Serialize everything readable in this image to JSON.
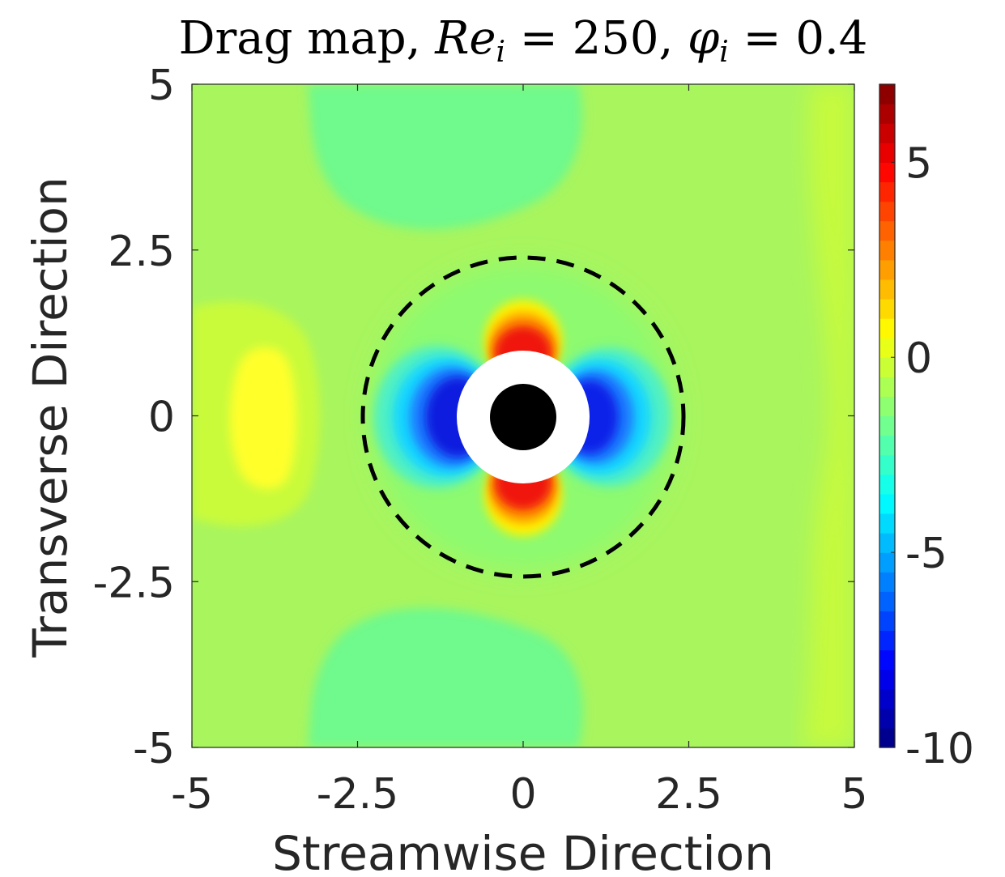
{
  "chart_data": {
    "type": "heatmap",
    "title": {
      "prefix": "Drag map, ",
      "re_symbol": "Re",
      "re_subscript": "i",
      "re_value": " = 250, ",
      "phi_symbol": "φ",
      "phi_subscript": "i",
      "phi_value": " = 0.4"
    },
    "xlabel": "Streamwise Direction",
    "ylabel": "Transverse Direction",
    "xlim": [
      -5,
      5
    ],
    "ylim": [
      -5,
      5
    ],
    "xticks": [
      -5,
      -2.5,
      0,
      2.5,
      5
    ],
    "yticks": [
      -5,
      -2.5,
      0,
      2.5,
      5
    ],
    "xtick_labels": [
      "-5",
      "-2.5",
      "0",
      "2.5",
      "5"
    ],
    "ytick_labels": [
      "-5",
      "-2.5",
      "0",
      "2.5",
      "5"
    ],
    "colorbar": {
      "range": [
        -10,
        7
      ],
      "ticks": [
        5,
        0,
        -5,
        -10
      ],
      "tick_labels": [
        "5",
        "0",
        "-5",
        "-10"
      ],
      "colormap": "jet",
      "levels": 34
    },
    "annotations": {
      "dashed_circle_radius": 2.4,
      "exclusion_zone_radius": 1.0,
      "particle_radius": 0.5
    },
    "regions": [
      {
        "name": "upstream-positive-lobe",
        "x": -4.0,
        "y": 0,
        "value": 1.5
      },
      {
        "name": "top-positive-lobe",
        "x": 0,
        "y": 1.2,
        "value": 7
      },
      {
        "name": "bottom-positive-lobe",
        "x": 0,
        "y": -1.2,
        "value": 7
      },
      {
        "name": "left-negative-lobe",
        "x": -1.2,
        "y": 0,
        "value": -10
      },
      {
        "name": "right-negative-lobe",
        "x": 1.2,
        "y": 0,
        "value": -9
      },
      {
        "name": "top-wake-region",
        "x": 0,
        "y": 4.0,
        "value": -1.2
      },
      {
        "name": "bottom-wake-region",
        "x": 0,
        "y": -4.0,
        "value": -1.2
      },
      {
        "name": "background",
        "x": 3.5,
        "y": 0,
        "value": 0.5
      }
    ]
  }
}
